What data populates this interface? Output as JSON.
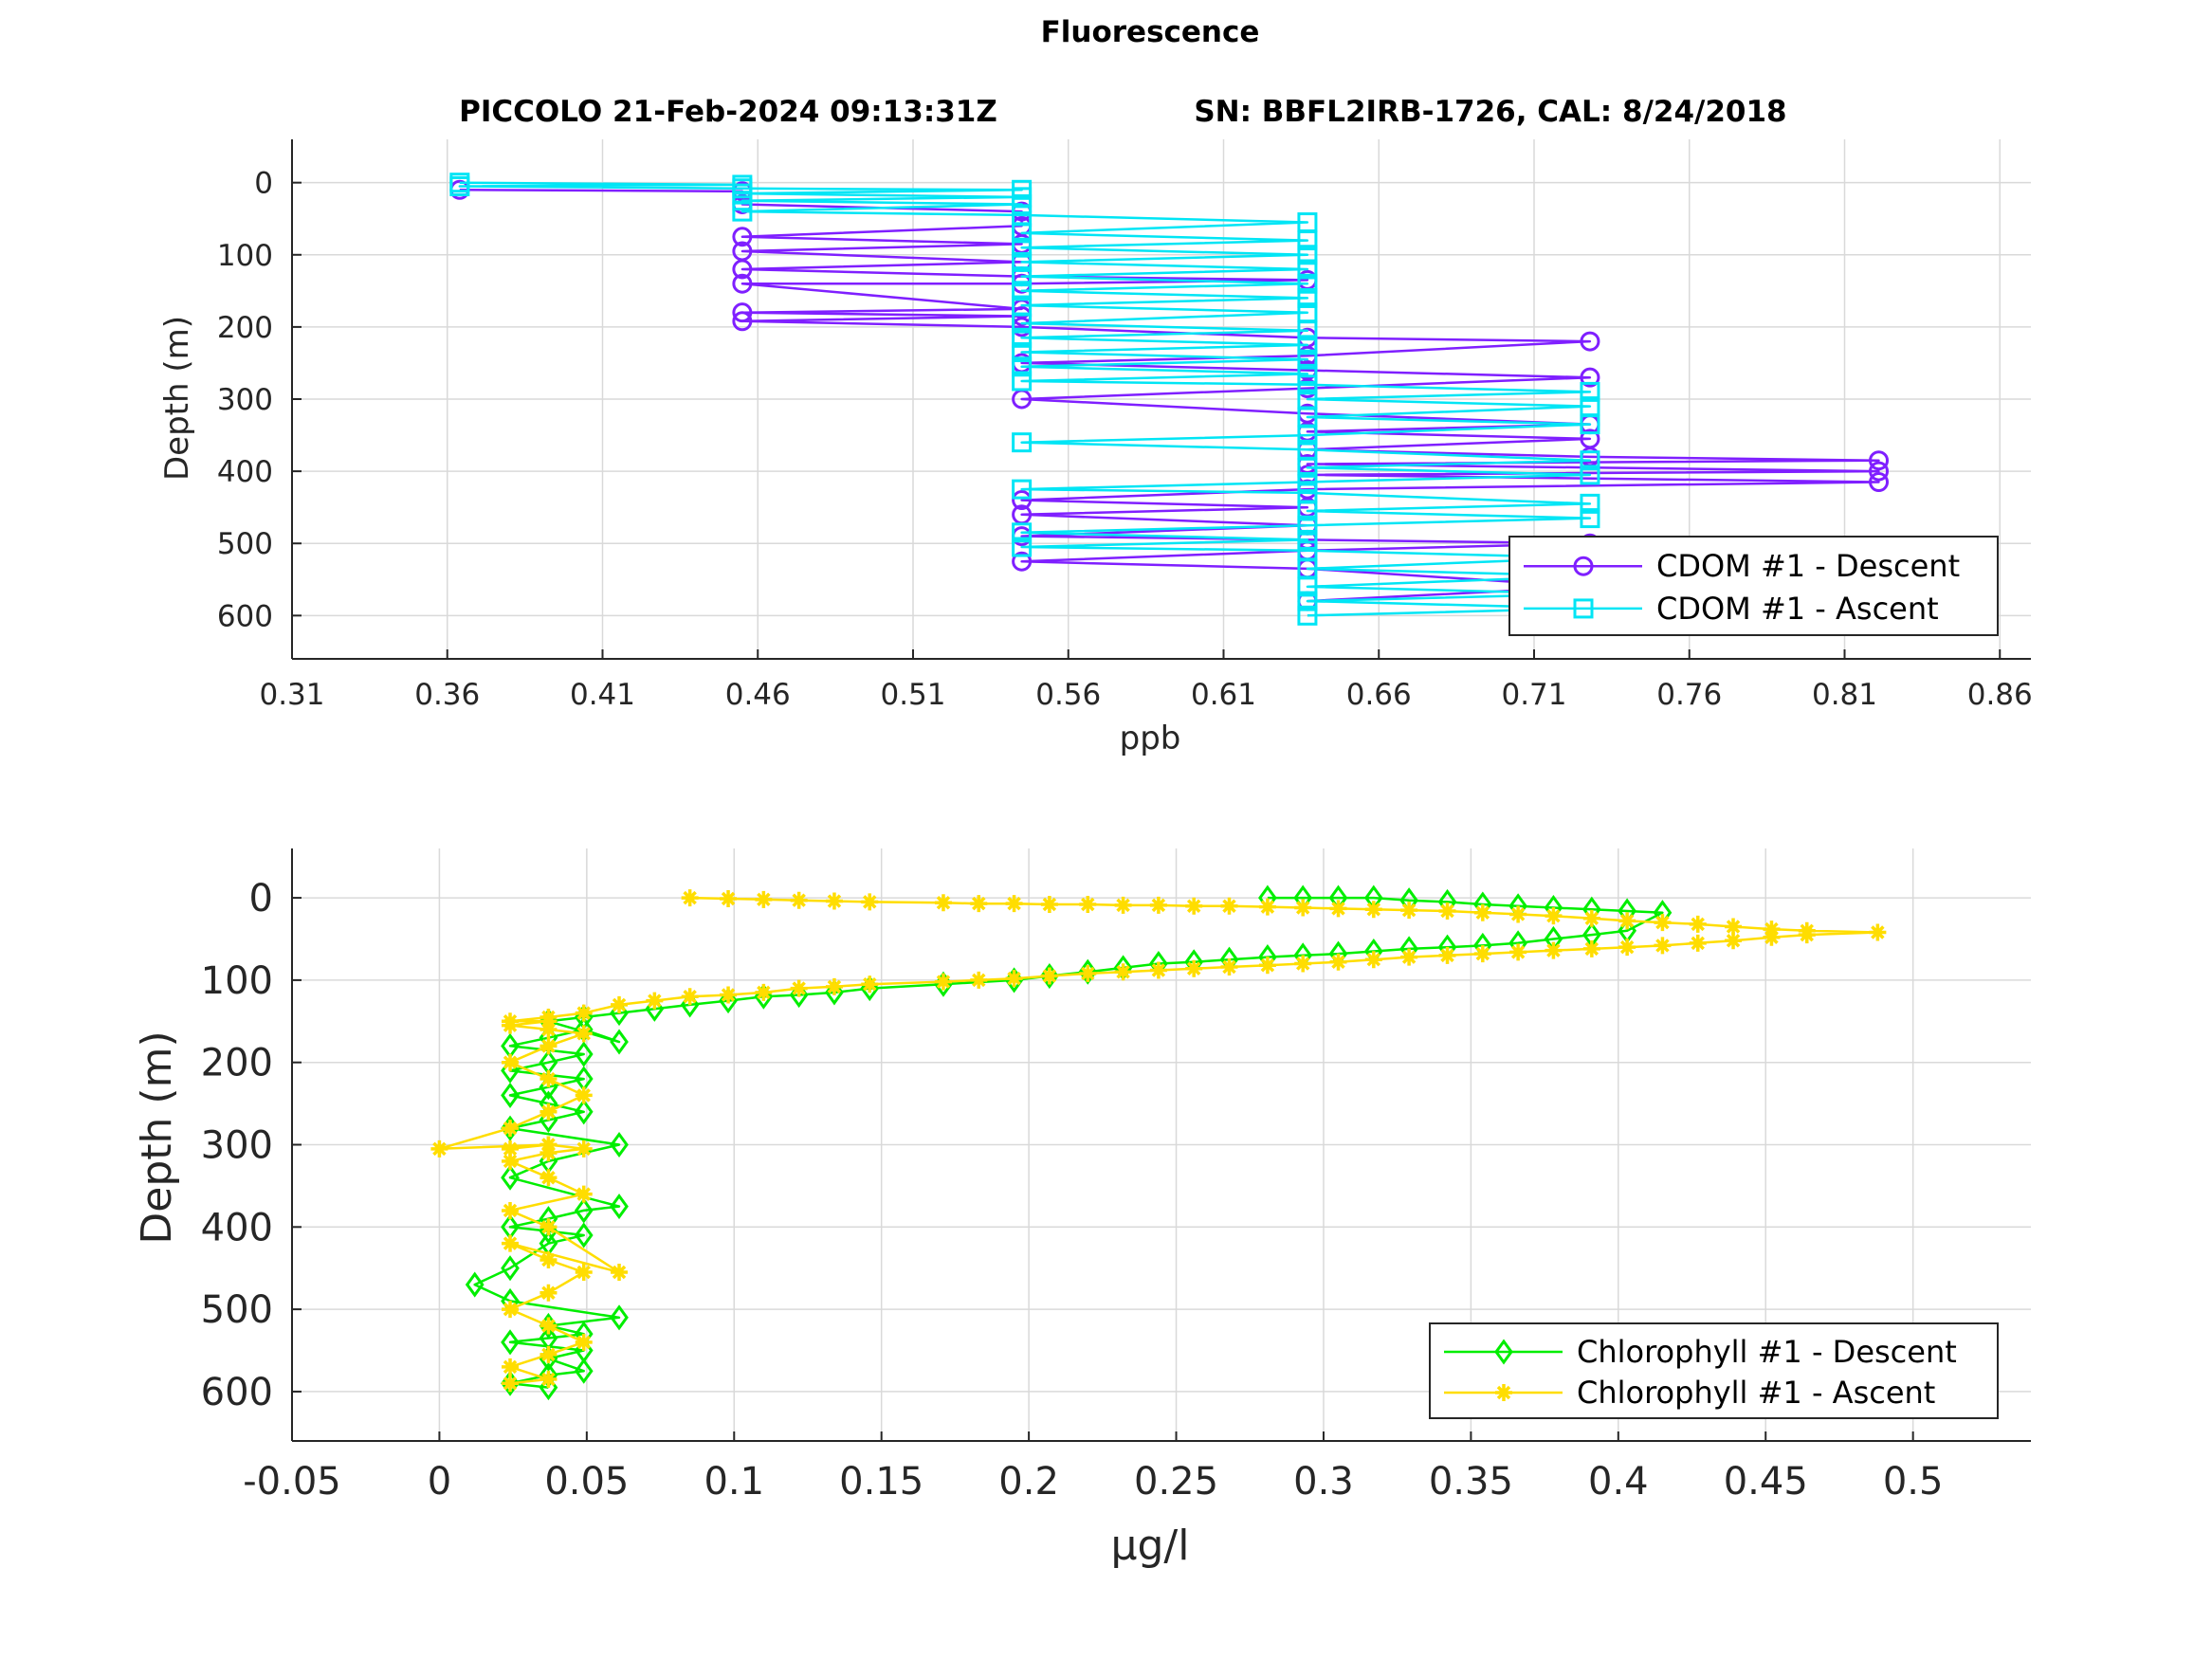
{
  "figure": {
    "title": "Fluorescence",
    "subtitle_left": "PICCOLO 21-Feb-2024 09:13:31Z",
    "subtitle_right": "SN: BBFL2IRB-1726, CAL: 8/24/2018"
  },
  "colors": {
    "cdom_descent": "#7f1fff",
    "cdom_ascent": "#00e5f5",
    "chl_descent": "#00ee00",
    "chl_ascent": "#ffdd00",
    "grid": "#d9d9d9",
    "axis": "#262626"
  },
  "chart_data": [
    {
      "type": "line",
      "xlabel": "ppb",
      "ylabel": "Depth (m)",
      "xlim": [
        0.31,
        0.87
      ],
      "ylim": [
        -60,
        660
      ],
      "y_reversed": true,
      "grid": true,
      "legend_position": "bottom-right",
      "xticks": [
        "0.31",
        "0.36",
        "0.41",
        "0.46",
        "0.51",
        "0.56",
        "0.61",
        "0.66",
        "0.71",
        "0.76",
        "0.81",
        "0.86"
      ],
      "yticks": [
        "0",
        "100",
        "200",
        "300",
        "400",
        "500",
        "600"
      ],
      "series": [
        {
          "name": "CDOM #1 - Descent",
          "marker": "circle",
          "color_key": "cdom_descent",
          "x": [
            0.364,
            0.455,
            0.455,
            0.545,
            0.545,
            0.455,
            0.545,
            0.455,
            0.545,
            0.455,
            0.545,
            0.637,
            0.545,
            0.455,
            0.545,
            0.455,
            0.545,
            0.455,
            0.545,
            0.637,
            0.728,
            0.637,
            0.545,
            0.637,
            0.728,
            0.637,
            0.545,
            0.637,
            0.728,
            0.637,
            0.728,
            0.637,
            0.728,
            0.821,
            0.637,
            0.821,
            0.637,
            0.821,
            0.637,
            0.545,
            0.637,
            0.545,
            0.637,
            0.545,
            0.637,
            0.728,
            0.637,
            0.545,
            0.637,
            0.728,
            0.637
          ],
          "y": [
            10,
            12,
            30,
            40,
            60,
            75,
            85,
            95,
            110,
            120,
            130,
            135,
            140,
            140,
            175,
            180,
            185,
            192,
            200,
            215,
            220,
            240,
            250,
            260,
            270,
            285,
            300,
            320,
            335,
            345,
            355,
            370,
            380,
            385,
            390,
            400,
            405,
            415,
            425,
            440,
            450,
            460,
            475,
            490,
            495,
            500,
            510,
            525,
            535,
            560,
            580
          ]
        },
        {
          "name": "CDOM #1 - Ascent",
          "marker": "square",
          "color_key": "cdom_ascent",
          "x": [
            0.637,
            0.728,
            0.637,
            0.728,
            0.637,
            0.728,
            0.637,
            0.728,
            0.637,
            0.545,
            0.637,
            0.545,
            0.637,
            0.728,
            0.637,
            0.728,
            0.637,
            0.545,
            0.637,
            0.728,
            0.637,
            0.728,
            0.637,
            0.545,
            0.637,
            0.728,
            0.637,
            0.728,
            0.637,
            0.728,
            0.637,
            0.545,
            0.637,
            0.545,
            0.637,
            0.545,
            0.637,
            0.545,
            0.637,
            0.545,
            0.637,
            0.545,
            0.637,
            0.545,
            0.637,
            0.545,
            0.637,
            0.545,
            0.637,
            0.545,
            0.637,
            0.545,
            0.637,
            0.545,
            0.455,
            0.545,
            0.455,
            0.545,
            0.455,
            0.545,
            0.455,
            0.364,
            0.455,
            0.364
          ],
          "y": [
            600,
            590,
            580,
            570,
            560,
            545,
            535,
            520,
            510,
            505,
            495,
            485,
            475,
            465,
            455,
            445,
            430,
            425,
            415,
            405,
            395,
            385,
            370,
            360,
            350,
            335,
            325,
            310,
            300,
            290,
            280,
            275,
            265,
            255,
            245,
            235,
            225,
            215,
            205,
            195,
            180,
            170,
            160,
            150,
            140,
            130,
            120,
            110,
            100,
            90,
            80,
            70,
            55,
            45,
            40,
            30,
            25,
            20,
            15,
            10,
            8,
            5,
            3,
            0
          ]
        }
      ]
    },
    {
      "type": "line",
      "xlabel": "μg/l",
      "ylabel": "Depth (m)",
      "xlim": [
        -0.05,
        0.54
      ],
      "ylim": [
        -60,
        660
      ],
      "y_reversed": true,
      "grid": true,
      "legend_position": "bottom-right",
      "xticks": [
        "-0.05",
        "0",
        "0.05",
        "0.1",
        "0.15",
        "0.2",
        "0.25",
        "0.3",
        "0.35",
        "0.4",
        "0.45",
        "0.5"
      ],
      "yticks": [
        "0",
        "100",
        "200",
        "300",
        "400",
        "500",
        "600"
      ],
      "series": [
        {
          "name": "Chlorophyll #1 - Descent",
          "marker": "diamond",
          "color_key": "chl_descent",
          "x": [
            0.281,
            0.293,
            0.305,
            0.317,
            0.329,
            0.342,
            0.354,
            0.366,
            0.378,
            0.391,
            0.403,
            0.415,
            0.403,
            0.391,
            0.378,
            0.366,
            0.354,
            0.342,
            0.329,
            0.317,
            0.305,
            0.293,
            0.281,
            0.268,
            0.256,
            0.244,
            0.232,
            0.22,
            0.207,
            0.195,
            0.171,
            0.146,
            0.134,
            0.122,
            0.11,
            0.098,
            0.085,
            0.073,
            0.061,
            0.049,
            0.037,
            0.061,
            0.049,
            0.037,
            0.024,
            0.049,
            0.037,
            0.024,
            0.049,
            0.037,
            0.024,
            0.037,
            0.049,
            0.037,
            0.024,
            0.061,
            0.037,
            0.024,
            0.061,
            0.049,
            0.037,
            0.024,
            0.037,
            0.049,
            0.037,
            0.024,
            0.012,
            0.024,
            0.061,
            0.037,
            0.049,
            0.037,
            0.024,
            0.049,
            0.037,
            0.049,
            0.037,
            0.024,
            0.037
          ],
          "y": [
            0,
            0,
            0,
            0,
            3,
            5,
            8,
            10,
            12,
            14,
            16,
            18,
            40,
            45,
            50,
            55,
            58,
            60,
            62,
            65,
            68,
            70,
            72,
            75,
            78,
            80,
            85,
            90,
            95,
            100,
            105,
            110,
            115,
            118,
            120,
            125,
            130,
            135,
            140,
            145,
            150,
            175,
            160,
            170,
            180,
            190,
            200,
            210,
            220,
            230,
            240,
            250,
            260,
            270,
            280,
            300,
            320,
            340,
            375,
            380,
            390,
            400,
            405,
            410,
            420,
            450,
            470,
            490,
            510,
            520,
            530,
            535,
            540,
            550,
            560,
            575,
            580,
            590,
            595
          ]
        },
        {
          "name": "Chlorophyll #1 - Ascent",
          "marker": "star",
          "color_key": "chl_ascent",
          "x": [
            0.024,
            0.037,
            0.024,
            0.037,
            0.049,
            0.037,
            0.024,
            0.037,
            0.049,
            0.037,
            0.024,
            0.061,
            0.037,
            0.024,
            0.049,
            0.037,
            0.024,
            0.037,
            0.049,
            0.037,
            0.024,
            0.037,
            0.0,
            0.024,
            0.037,
            0.049,
            0.037,
            0.024,
            0.037,
            0.049,
            0.037,
            0.024,
            0.037,
            0.024,
            0.037,
            0.049,
            0.061,
            0.073,
            0.085,
            0.098,
            0.11,
            0.122,
            0.134,
            0.146,
            0.171,
            0.183,
            0.195,
            0.207,
            0.22,
            0.232,
            0.244,
            0.256,
            0.268,
            0.281,
            0.293,
            0.305,
            0.317,
            0.329,
            0.342,
            0.354,
            0.366,
            0.378,
            0.391,
            0.403,
            0.415,
            0.427,
            0.439,
            0.452,
            0.464,
            0.488,
            0.464,
            0.452,
            0.439,
            0.427,
            0.415,
            0.403,
            0.391,
            0.378,
            0.366,
            0.354,
            0.342,
            0.329,
            0.317,
            0.305,
            0.293,
            0.281,
            0.268,
            0.256,
            0.244,
            0.232,
            0.22,
            0.207,
            0.195,
            0.183,
            0.171,
            0.146,
            0.134,
            0.122,
            0.11,
            0.098,
            0.085
          ],
          "y": [
            590,
            585,
            570,
            555,
            540,
            520,
            500,
            480,
            455,
            440,
            420,
            455,
            400,
            380,
            360,
            340,
            320,
            310,
            305,
            300,
            305,
            300,
            305,
            280,
            260,
            240,
            220,
            200,
            180,
            165,
            160,
            155,
            150,
            150,
            145,
            140,
            130,
            125,
            120,
            118,
            115,
            110,
            108,
            105,
            102,
            100,
            98,
            95,
            92,
            90,
            88,
            86,
            84,
            82,
            80,
            78,
            75,
            72,
            70,
            68,
            66,
            64,
            62,
            60,
            58,
            55,
            52,
            48,
            45,
            42,
            40,
            38,
            35,
            32,
            30,
            28,
            25,
            22,
            20,
            18,
            16,
            15,
            14,
            13,
            12,
            11,
            10,
            10,
            9,
            9,
            8,
            8,
            7,
            7,
            6,
            5,
            4,
            3,
            2,
            1,
            0
          ]
        }
      ]
    }
  ]
}
